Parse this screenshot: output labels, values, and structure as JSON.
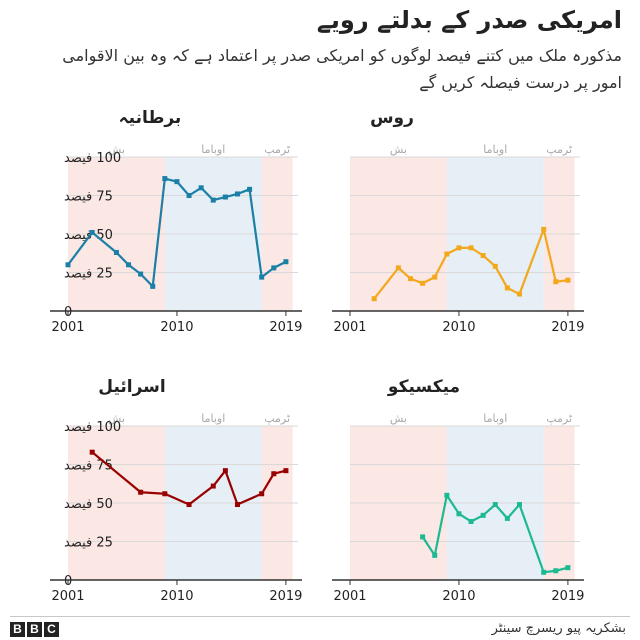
{
  "header": {
    "title": "امریکی صدر کے بدلتے رویے",
    "subtitle": "مذکورہ ملک میں کتنے فیصد لوگوں کو امریکی صدر پر اعتماد ہے کہ وہ بین الاقوامی امور پر درست فیصلہ کریں گے"
  },
  "footer": {
    "logo_letters": [
      "B",
      "B",
      "C"
    ],
    "source": "بشکریہ پیو ریسرچ سینٹر"
  },
  "colors": {
    "bush_bg": "#fbe7e4",
    "obama_bg": "#e6eff6",
    "trump_bg": "#fbe7e4",
    "grid": "#d9d9d9",
    "axis": "#333333",
    "era_label": "#a8a8a8"
  },
  "chart_data": [
    {
      "type": "line",
      "title": "برطانیہ",
      "color": "#1b7fa6",
      "xlim": [
        2001,
        2020
      ],
      "ylim": [
        0,
        100
      ],
      "y_ticks": [
        0,
        25,
        50,
        75,
        100
      ],
      "y_tick_labels": [
        "0",
        "25 فیصد",
        "50 فیصد",
        "75 فیصد",
        "100 فیصد"
      ],
      "x_ticks": [
        2001,
        2010,
        2019
      ],
      "x_tick_labels": [
        "2001",
        "2010",
        "2019"
      ],
      "eras": [
        {
          "label": "بش",
          "from": 2001,
          "to": 2009
        },
        {
          "label": "اوباما",
          "from": 2009,
          "to": 2017
        },
        {
          "label": "ٹرمپ",
          "from": 2017,
          "to": 2019
        }
      ],
      "series": [
        {
          "x": [
            2001,
            2003,
            2005,
            2006,
            2007,
            2008,
            2009,
            2010,
            2011,
            2012,
            2013,
            2014,
            2015,
            2016,
            2017,
            2018,
            2019
          ],
          "y": [
            30,
            51,
            38,
            30,
            24,
            16,
            86,
            84,
            75,
            80,
            72,
            74,
            76,
            79,
            22,
            28,
            32
          ]
        }
      ]
    },
    {
      "type": "line",
      "title": "روس",
      "color": "#f2a81d",
      "xlim": [
        2001,
        2020
      ],
      "ylim": [
        0,
        100
      ],
      "y_ticks": [
        0,
        25,
        50,
        75,
        100
      ],
      "x_ticks": [
        2001,
        2010,
        2019
      ],
      "x_tick_labels": [
        "2001",
        "2010",
        "2019"
      ],
      "eras": [
        {
          "label": "بش",
          "from": 2001,
          "to": 2009
        },
        {
          "label": "اوباما",
          "from": 2009,
          "to": 2017
        },
        {
          "label": "ٹرمپ",
          "from": 2017,
          "to": 2019
        }
      ],
      "series": [
        {
          "x": [
            2003,
            2005,
            2006,
            2007,
            2008,
            2009,
            2010,
            2011,
            2012,
            2013,
            2014,
            2015,
            2017,
            2018,
            2019
          ],
          "y": [
            8,
            28,
            21,
            18,
            22,
            37,
            41,
            41,
            36,
            29,
            15,
            11,
            53,
            19,
            20
          ]
        }
      ]
    },
    {
      "type": "line",
      "title": "اسرائیل",
      "color": "#990000",
      "xlim": [
        2001,
        2020
      ],
      "ylim": [
        0,
        100
      ],
      "y_ticks": [
        0,
        25,
        50,
        75,
        100
      ],
      "y_tick_labels": [
        "0",
        "25 فیصد",
        "50 فیصد",
        "75 فیصد",
        "100 فیصد"
      ],
      "x_ticks": [
        2001,
        2010,
        2019
      ],
      "x_tick_labels": [
        "2001",
        "2010",
        "2019"
      ],
      "eras": [
        {
          "label": "بش",
          "from": 2001,
          "to": 2009
        },
        {
          "label": "اوباما",
          "from": 2009,
          "to": 2017
        },
        {
          "label": "ٹرمپ",
          "from": 2017,
          "to": 2019
        }
      ],
      "series": [
        {
          "x": [
            2003,
            2007,
            2009,
            2011,
            2013,
            2014,
            2015,
            2017,
            2018,
            2019
          ],
          "y": [
            83,
            57,
            56,
            49,
            61,
            71,
            49,
            56,
            69,
            71
          ]
        }
      ]
    },
    {
      "type": "line",
      "title": "میکسیکو",
      "color": "#1db991",
      "xlim": [
        2001,
        2020
      ],
      "ylim": [
        0,
        100
      ],
      "y_ticks": [
        0,
        25,
        50,
        75,
        100
      ],
      "x_ticks": [
        2001,
        2010,
        2019
      ],
      "x_tick_labels": [
        "2001",
        "2010",
        "2019"
      ],
      "eras": [
        {
          "label": "بش",
          "from": 2001,
          "to": 2009
        },
        {
          "label": "اوباما",
          "from": 2009,
          "to": 2017
        },
        {
          "label": "ٹرمپ",
          "from": 2017,
          "to": 2019
        }
      ],
      "series": [
        {
          "x": [
            2007,
            2008,
            2009,
            2010,
            2011,
            2012,
            2013,
            2014,
            2015,
            2017,
            2018,
            2019
          ],
          "y": [
            28,
            16,
            55,
            43,
            38,
            42,
            49,
            40,
            49,
            5,
            6,
            8
          ]
        }
      ]
    }
  ]
}
